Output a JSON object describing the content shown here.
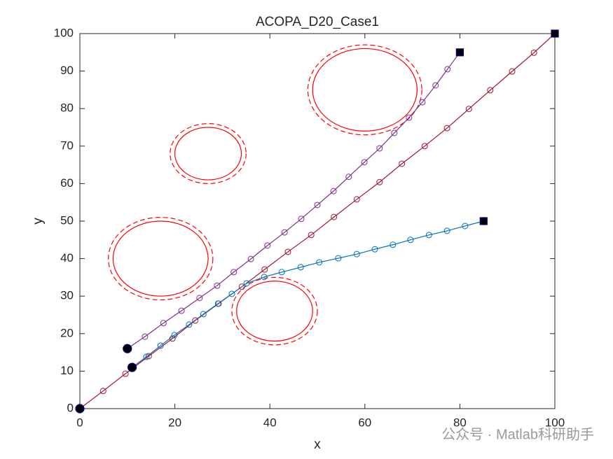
{
  "chart_data": {
    "type": "line",
    "title": "ACOPA_D20_Case1",
    "xlabel": "x",
    "ylabel": "y",
    "watermark": "公众号 · Matlab科研助手",
    "xlim": [
      0,
      100
    ],
    "ylim": [
      0,
      100
    ],
    "xticks": [
      0,
      20,
      40,
      60,
      80,
      100
    ],
    "yticks": [
      0,
      10,
      20,
      30,
      40,
      50,
      60,
      70,
      80,
      90,
      100
    ],
    "series": [
      {
        "color": "#a2142f",
        "x": [
          0,
          4.9,
          9.6,
          14.5,
          19.5,
          24.3,
          29.2,
          34.1,
          38.9,
          43.8,
          48.7,
          53.5,
          58.3,
          63.1,
          67.8,
          72.6,
          77.3,
          81.9,
          86.4,
          91.0,
          95.6,
          100
        ],
        "values": [
          0,
          4.7,
          9.3,
          14.0,
          18.7,
          23.5,
          28.0,
          32.5,
          37.1,
          41.8,
          46.3,
          51.1,
          55.8,
          60.4,
          65.3,
          70.0,
          74.8,
          79.9,
          84.9,
          89.9,
          94.9,
          100
        ]
      },
      {
        "color": "#7e2f8e",
        "x": [
          10,
          13.7,
          17.6,
          21.4,
          25.2,
          28.9,
          32.4,
          36.0,
          39.5,
          43.1,
          46.6,
          50.0,
          53.4,
          56.6,
          59.9,
          63.1,
          66.2,
          69.3,
          72.1,
          74.9,
          77.4,
          80
        ],
        "values": [
          16,
          19.2,
          22.8,
          26.1,
          29.5,
          32.8,
          36.4,
          39.9,
          43.5,
          47.0,
          50.6,
          54.3,
          58.0,
          61.8,
          65.7,
          69.4,
          73.5,
          77.6,
          81.7,
          86.2,
          90.5,
          95
        ]
      },
      {
        "color": "#0072bd",
        "x": [
          11,
          14.0,
          17.0,
          19.9,
          23.0,
          26.0,
          29.1,
          32.0,
          35.1,
          38.8,
          42.5,
          46.5,
          50.4,
          54.4,
          58.3,
          62.1,
          65.9,
          69.6,
          73.5,
          77.3,
          81.1,
          85
        ],
        "values": [
          11,
          13.8,
          16.8,
          19.6,
          22.4,
          25.2,
          28.0,
          30.6,
          33.4,
          35.1,
          36.4,
          37.7,
          39.0,
          40.1,
          41.2,
          42.5,
          43.7,
          45.0,
          46.3,
          47.4,
          48.7,
          50
        ]
      }
    ],
    "obstacles": [
      {
        "x": 17,
        "y": 40,
        "r": 10,
        "r_dashed": 11
      },
      {
        "x": 27,
        "y": 68,
        "r": 7,
        "r_dashed": 8
      },
      {
        "x": 60,
        "y": 85,
        "r": 11,
        "r_dashed": 12
      },
      {
        "x": 41,
        "y": 26,
        "r": 8,
        "r_dashed": 9
      }
    ],
    "obstacle_color": "#ff0000"
  }
}
